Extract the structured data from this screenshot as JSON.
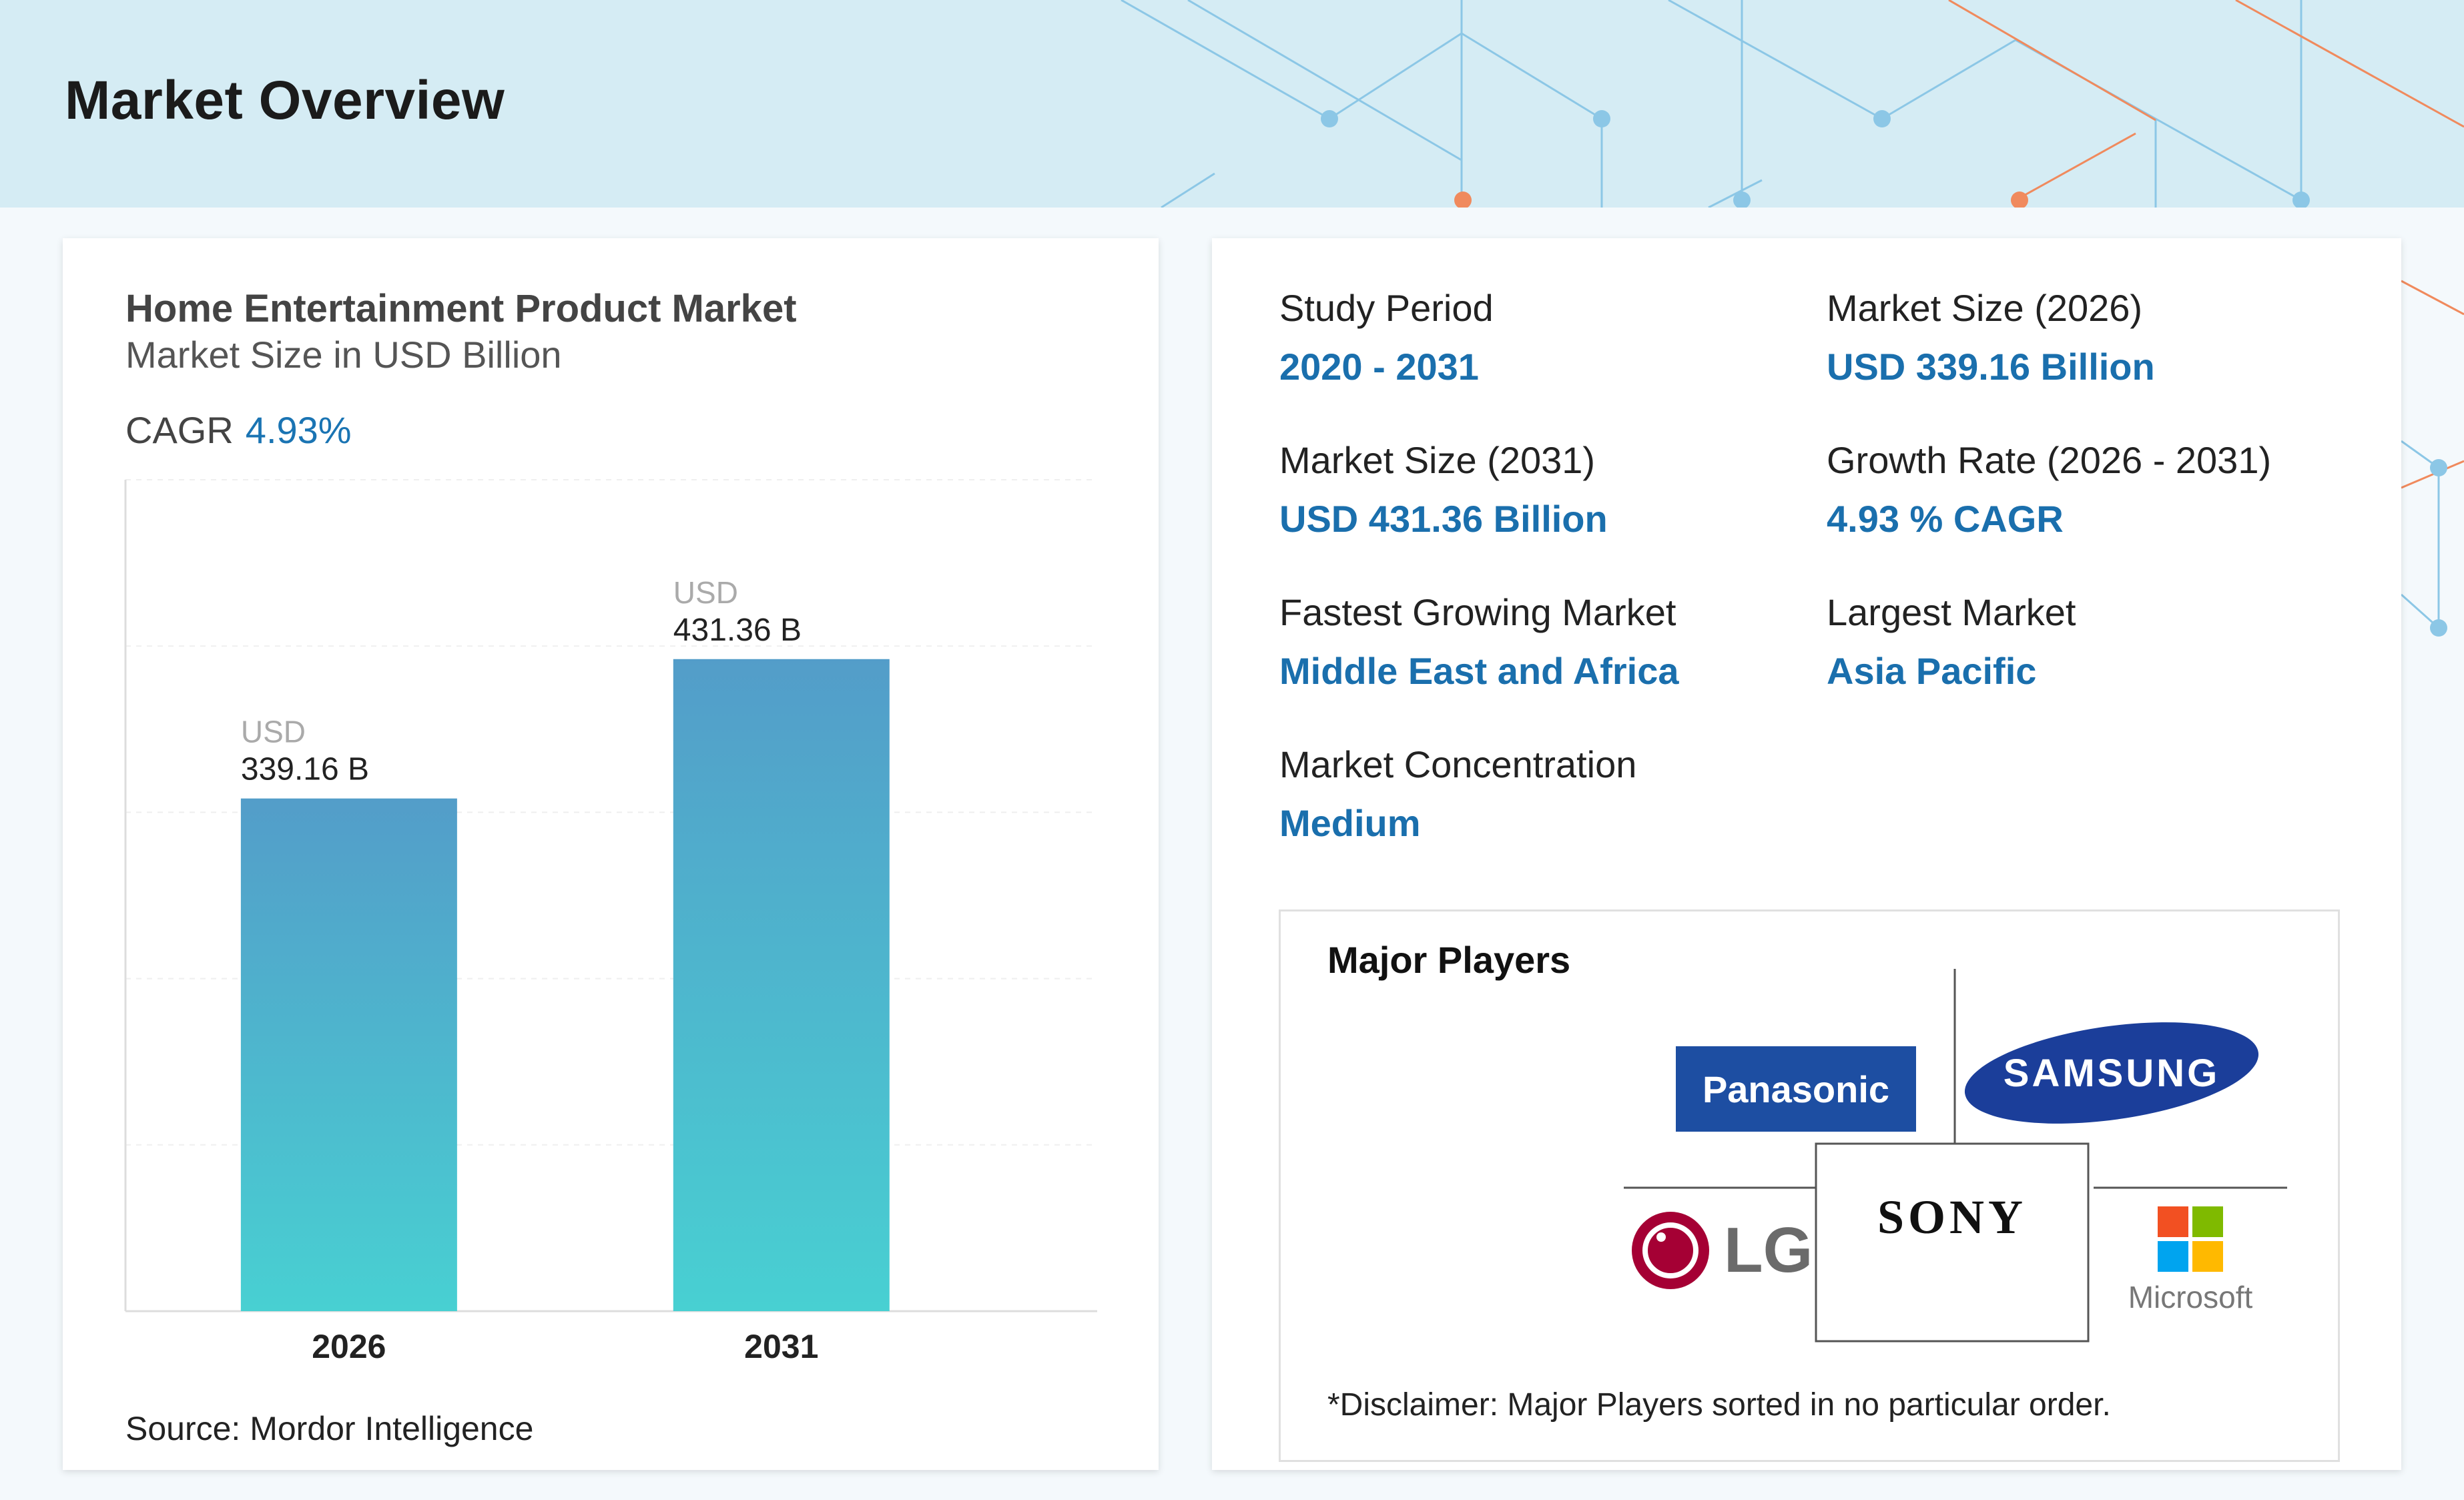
{
  "page": {
    "title": "Market Overview"
  },
  "chart_data": {
    "type": "bar",
    "title": "Home Entertainment Product Market",
    "subtitle": "Market Size in USD Billion",
    "cagr_label": "CAGR",
    "cagr_value": "4.93%",
    "categories": [
      "2026",
      "2031"
    ],
    "values": [
      339.16,
      431.36
    ],
    "value_prefix": "USD",
    "value_labels": [
      "339.16 B",
      "431.36 B"
    ],
    "ylim": [
      0,
      550
    ],
    "grid": true,
    "source": "Source: Mordor Intelligence",
    "colors": {
      "bar_top": "#539dc9",
      "bar_bottom": "#48d0d2"
    }
  },
  "stats": [
    {
      "label": "Study Period",
      "value": "2020 - 2031"
    },
    {
      "label": "Market Size (2026)",
      "value": "USD 339.16 Billion"
    },
    {
      "label": "Market Size (2031)",
      "value": "USD 431.36 Billion"
    },
    {
      "label": "Growth Rate (2026 - 2031)",
      "value": "4.93 % CAGR"
    },
    {
      "label": "Fastest Growing Market",
      "value": "Middle East and Africa"
    },
    {
      "label": "Largest Market",
      "value": "Asia Pacific"
    },
    {
      "label": "Market Concentration",
      "value": "Medium"
    }
  ],
  "players": {
    "title": "Major Players",
    "logos": [
      "Panasonic",
      "SAMSUNG",
      "LG",
      "SONY",
      "Microsoft"
    ],
    "disclaimer": "*Disclaimer: Major Players sorted in no particular order."
  },
  "colors": {
    "accent": "#1a6fad",
    "header_bg": "#d5ecf4"
  }
}
